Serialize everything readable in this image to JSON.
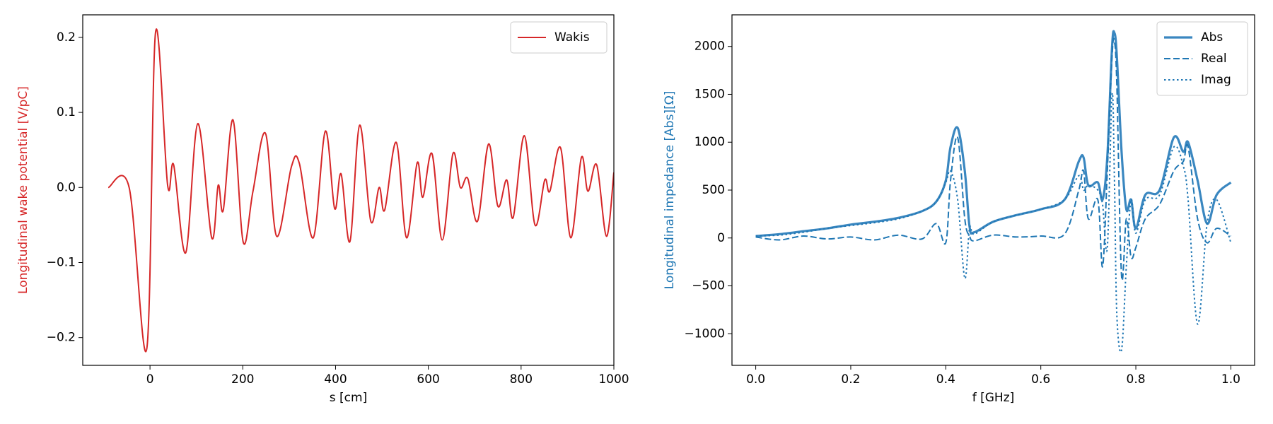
{
  "chart_data": [
    {
      "type": "line",
      "xlabel": "s [cm]",
      "ylabel": "Longitudinal wake potential [V/pC]",
      "ylabel_color": "#d62728",
      "xlim": [
        -145,
        1000
      ],
      "ylim": [
        -0.237,
        0.23
      ],
      "xticks": [
        0,
        200,
        400,
        600,
        800,
        1000
      ],
      "yticks": [
        {
          "value": -0.2,
          "label": "−0.2"
        },
        {
          "value": -0.1,
          "label": "−0.1"
        },
        {
          "value": 0,
          "label": "0.0"
        },
        0.1,
        0.2
      ],
      "legend": "upper right",
      "x": [
        -90,
        -45,
        -7,
        12,
        38,
        51,
        77,
        103,
        133,
        147,
        158,
        179,
        201,
        222,
        249,
        273,
        305,
        322,
        352,
        378,
        398,
        412,
        431,
        452,
        476,
        494,
        506,
        531,
        553,
        576,
        588,
        608,
        630,
        653,
        669,
        685,
        706,
        730,
        750,
        769,
        783,
        807,
        830,
        851,
        862,
        885,
        907,
        930,
        944,
        963,
        984,
        1000
      ],
      "series": [
        {
          "name": "Wakis",
          "color": "#d62728",
          "linestyle": "solid",
          "linewidth": 2,
          "values": [
            0,
            0,
            -0.215,
            0.207,
            0.003,
            0.03,
            -0.087,
            0.085,
            -0.067,
            0.003,
            -0.03,
            0.09,
            -0.073,
            -0.005,
            0.072,
            -0.065,
            0.028,
            0.032,
            -0.067,
            0.075,
            -0.028,
            0.018,
            -0.072,
            0.083,
            -0.045,
            0.0,
            -0.03,
            0.06,
            -0.067,
            0.033,
            -0.013,
            0.045,
            -0.07,
            0.045,
            0.0,
            0.012,
            -0.045,
            0.058,
            -0.025,
            0.01,
            -0.04,
            0.069,
            -0.05,
            0.01,
            -0.005,
            0.053,
            -0.067,
            0.04,
            -0.005,
            0.03,
            -0.065,
            0.02
          ]
        }
      ]
    },
    {
      "type": "line",
      "xlabel": "f [GHz]",
      "ylabel": "Longitudinal impedance [Abs][Ω]",
      "ylabel_color": "#1f77b4",
      "xlim": [
        -0.05,
        1.05
      ],
      "ylim": [
        -1330,
        2330
      ],
      "xticks": [
        {
          "value": 0,
          "label": "0.0"
        },
        0.2,
        0.4,
        0.6,
        0.8,
        {
          "value": 1,
          "label": "1.0"
        }
      ],
      "yticks": [
        {
          "value": -1000,
          "label": "−1000"
        },
        {
          "value": -500,
          "label": "−500"
        },
        0,
        500,
        1000,
        1500,
        2000
      ],
      "legend": "upper right",
      "x": [
        0,
        0.05,
        0.1,
        0.15,
        0.2,
        0.25,
        0.3,
        0.35,
        0.38,
        0.4,
        0.41,
        0.425,
        0.44,
        0.45,
        0.46,
        0.5,
        0.55,
        0.6,
        0.65,
        0.68,
        0.69,
        0.7,
        0.72,
        0.73,
        0.74,
        0.75,
        0.755,
        0.76,
        0.77,
        0.78,
        0.79,
        0.8,
        0.82,
        0.85,
        0.88,
        0.9,
        0.91,
        0.93,
        0.95,
        0.97,
        1.0
      ],
      "series": [
        {
          "name": "Abs",
          "color": "#3a87c0",
          "linestyle": "solid",
          "linewidth": 3.2,
          "values": [
            20,
            40,
            70,
            100,
            140,
            170,
            210,
            280,
            380,
            600,
            950,
            1150,
            700,
            120,
            60,
            170,
            240,
            300,
            400,
            800,
            840,
            550,
            580,
            400,
            850,
            2000,
            2140,
            1900,
            900,
            300,
            400,
            100,
            450,
            500,
            1050,
            900,
            1000,
            600,
            150,
            450,
            580
          ]
        },
        {
          "name": "Real",
          "color": "#1f77b4",
          "linestyle": "dashed",
          "linewidth": 2,
          "values": [
            10,
            -20,
            20,
            -10,
            10,
            -20,
            30,
            -10,
            150,
            -50,
            600,
            1050,
            200,
            20,
            -30,
            30,
            10,
            20,
            40,
            500,
            700,
            200,
            400,
            -300,
            700,
            1900,
            2050,
            1600,
            -400,
            200,
            -200,
            -100,
            200,
            350,
            700,
            800,
            950,
            200,
            -50,
            100,
            20
          ]
        },
        {
          "name": "Imag",
          "color": "#1f77b4",
          "linestyle": "dotted",
          "linewidth": 2,
          "values": [
            20,
            30,
            60,
            100,
            130,
            160,
            200,
            280,
            380,
            580,
            700,
            400,
            -420,
            100,
            40,
            170,
            240,
            300,
            400,
            650,
            500,
            550,
            500,
            350,
            -100,
            1500,
            600,
            -800,
            -1170,
            -300,
            400,
            50,
            400,
            450,
            950,
            750,
            400,
            -900,
            150,
            400,
            -50
          ]
        }
      ]
    }
  ]
}
